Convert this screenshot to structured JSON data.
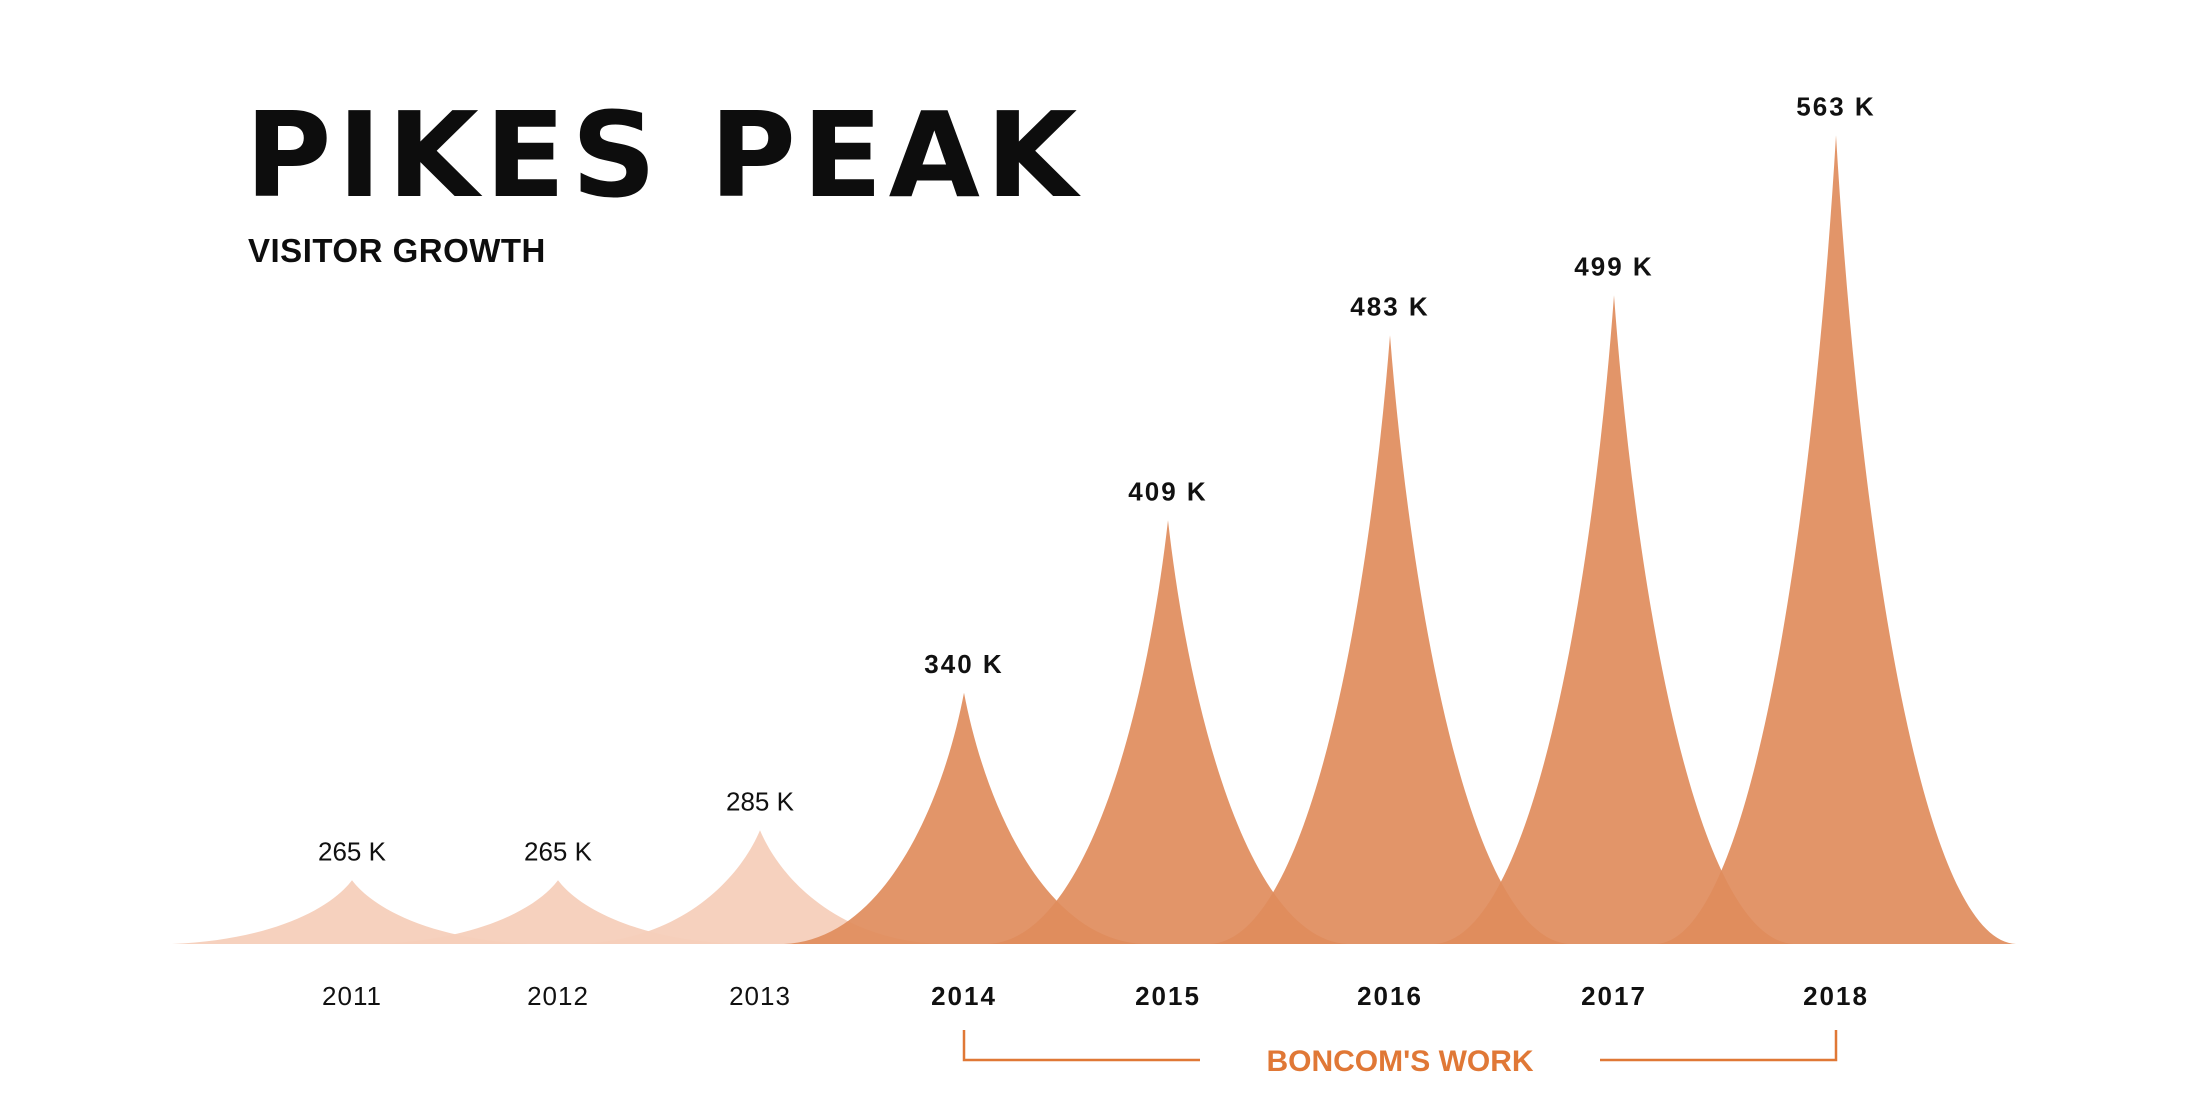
{
  "title": "PIKES PEAK",
  "subtitle": "VISITOR GROWTH",
  "chart_data": {
    "type": "area",
    "title": "PIKES PEAK",
    "subtitle": "VISITOR GROWTH",
    "unit": "K",
    "categories": [
      "2011",
      "2012",
      "2013",
      "2014",
      "2015",
      "2016",
      "2017",
      "2018"
    ],
    "values": [
      265,
      265,
      285,
      340,
      409,
      483,
      499,
      563
    ],
    "labels": [
      "265 K",
      "265 K",
      "285 K",
      "340 K",
      "409 K",
      "483 K",
      "499 K",
      "563 K"
    ],
    "highlight_from": "2014",
    "highlight_to": "2018",
    "highlight_label": "BONCOM'S WORK",
    "colors": {
      "before": "#f5cfbb",
      "highlight": "#e08c5c",
      "bracket": "#e07836",
      "text": "#111111"
    }
  }
}
